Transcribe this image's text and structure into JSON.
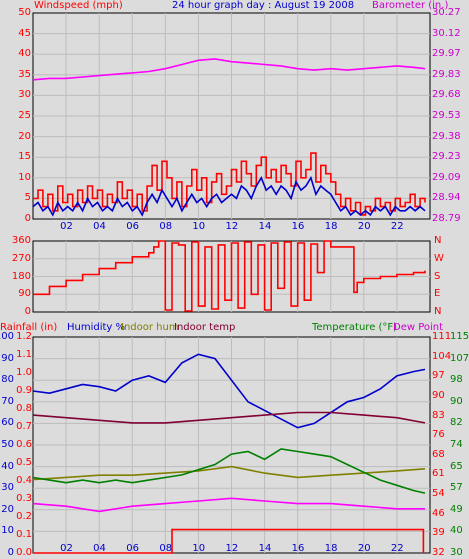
{
  "header": {
    "title": "24 hour graph day : August 19 2008",
    "windspeed_label": "Windspeed (mph)",
    "barometer_label": "Barometer (in.)"
  },
  "bottom_legend": {
    "rainfall": "Rainfall (in)",
    "humidity": "Humidity %",
    "indoor_hum": "Indoor hum",
    "indoor_temp": "Indoor temp",
    "temperature": "Temperature (°F)",
    "dew_point": "Dew Point"
  },
  "colors": {
    "background": "#dcdcdc",
    "wind_gust": "#ff0000",
    "wind_avg": "#0000cc",
    "barometer": "#ff00ff",
    "wind_dir": "#ff0000",
    "humidity": "#0000cc",
    "indoor_hum": "#808000",
    "indoor_temp": "#800033",
    "temperature": "#008000",
    "dew_point": "#ff00ff",
    "rainfall": "#ff0000",
    "left_axis_text": "#ff0000",
    "right_axis_text": "#cc00cc",
    "hum_axis_text": "#0000cc"
  },
  "chart_data": [
    {
      "id": "wind_baro",
      "type": "line",
      "title": "24 hour graph day : August 19 2008",
      "x_ticks": [
        "02",
        "04",
        "06",
        "08",
        "10",
        "12",
        "14",
        "16",
        "18",
        "20",
        "22"
      ],
      "xlim": [
        0,
        24
      ],
      "ylabel": "Windspeed (mph)",
      "ylim": [
        0,
        50
      ],
      "y_ticks": [
        "0",
        "5",
        "10",
        "15",
        "20",
        "25",
        "30",
        "35",
        "40",
        "45",
        "50"
      ],
      "y2label": "Barometer (in.)",
      "y2lim": [
        28.79,
        30.27
      ],
      "y2_ticks": [
        "28.79",
        "28.94",
        "29.09",
        "29.23",
        "29.38",
        "29.53",
        "29.68",
        "29.83",
        "29.97",
        "30.12",
        "30.27"
      ],
      "series": [
        {
          "name": "",
          "axis": "left",
          "x": [
            0,
            0.3,
            0.6,
            0.9,
            1.2,
            1.5,
            1.8,
            2.1,
            2.4,
            2.7,
            3.0,
            3.3,
            3.6,
            3.9,
            4.2,
            4.5,
            4.8,
            5.1,
            5.4,
            5.7,
            6.0,
            6.3,
            6.6,
            6.9,
            7.2,
            7.5,
            7.8,
            8.1,
            8.4,
            8.7,
            9.0,
            9.3,
            9.6,
            9.9,
            10.2,
            10.5,
            10.8,
            11.1,
            11.4,
            11.7,
            12.0,
            12.3,
            12.6,
            12.9,
            13.2,
            13.5,
            13.8,
            14.1,
            14.4,
            14.7,
            15.0,
            15.3,
            15.6,
            15.9,
            16.2,
            16.5,
            16.8,
            17.1,
            17.4,
            17.7,
            18.0,
            18.3,
            18.6,
            18.9,
            19.2,
            19.5,
            19.8,
            20.1,
            20.4,
            20.7,
            21.0,
            21.3,
            21.6,
            21.9,
            22.2,
            22.5,
            22.8,
            23.1,
            23.4,
            23.7
          ],
          "values": [
            5,
            7,
            3,
            6,
            2,
            8,
            4,
            6,
            3,
            7,
            4,
            8,
            5,
            7,
            3,
            6,
            4,
            9,
            5,
            7,
            3,
            6,
            2,
            8,
            13,
            7,
            14,
            10,
            5,
            9,
            3,
            8,
            12,
            7,
            10,
            4,
            9,
            11,
            6,
            8,
            12,
            9,
            14,
            11,
            8,
            13,
            15,
            10,
            12,
            9,
            13,
            11,
            8,
            14,
            10,
            12,
            16,
            9,
            13,
            11,
            9,
            6,
            3,
            5,
            2,
            4,
            1,
            3,
            2,
            5,
            3,
            4,
            2,
            5,
            3,
            4,
            6,
            3,
            5,
            4
          ]
        },
        {
          "name": "",
          "axis": "left",
          "x": [
            0,
            0.3,
            0.6,
            0.9,
            1.2,
            1.5,
            1.8,
            2.1,
            2.4,
            2.7,
            3.0,
            3.3,
            3.6,
            3.9,
            4.2,
            4.5,
            4.8,
            5.1,
            5.4,
            5.7,
            6.0,
            6.3,
            6.6,
            6.9,
            7.2,
            7.5,
            7.8,
            8.1,
            8.4,
            8.7,
            9.0,
            9.3,
            9.6,
            9.9,
            10.2,
            10.5,
            10.8,
            11.1,
            11.4,
            11.7,
            12.0,
            12.3,
            12.6,
            12.9,
            13.2,
            13.5,
            13.8,
            14.1,
            14.4,
            14.7,
            15.0,
            15.3,
            15.6,
            15.9,
            16.2,
            16.5,
            16.8,
            17.1,
            17.4,
            17.7,
            18.0,
            18.3,
            18.6,
            18.9,
            19.2,
            19.5,
            19.8,
            20.1,
            20.4,
            20.7,
            21.0,
            21.3,
            21.6,
            21.9,
            22.2,
            22.5,
            22.8,
            23.1,
            23.4,
            23.7
          ],
          "values": [
            3,
            4,
            2,
            3,
            1,
            4,
            2,
            3,
            2,
            4,
            2,
            5,
            3,
            4,
            2,
            3,
            2,
            5,
            3,
            4,
            2,
            3,
            1,
            4,
            6,
            4,
            7,
            5,
            3,
            5,
            2,
            4,
            6,
            4,
            5,
            3,
            5,
            6,
            4,
            5,
            6,
            5,
            8,
            7,
            5,
            8,
            10,
            7,
            8,
            6,
            8,
            7,
            5,
            9,
            7,
            8,
            10,
            6,
            8,
            7,
            6,
            4,
            2,
            3,
            1,
            2,
            1,
            2,
            1,
            3,
            2,
            3,
            1,
            3,
            2,
            2,
            3,
            2,
            3,
            2
          ]
        },
        {
          "name": "",
          "axis": "right",
          "x": [
            0,
            1,
            2,
            3,
            4,
            5,
            6,
            7,
            8,
            9,
            10,
            11,
            12,
            13,
            14,
            15,
            16,
            17,
            18,
            19,
            20,
            21,
            22,
            23,
            23.7
          ],
          "values": [
            29.79,
            29.8,
            29.8,
            29.81,
            29.82,
            29.83,
            29.84,
            29.85,
            29.87,
            29.9,
            29.93,
            29.94,
            29.92,
            29.91,
            29.9,
            29.89,
            29.87,
            29.86,
            29.87,
            29.86,
            29.87,
            29.88,
            29.89,
            29.88,
            29.87
          ]
        }
      ]
    },
    {
      "id": "wind_dir",
      "type": "line",
      "xlim": [
        0,
        24
      ],
      "ylim": [
        0,
        360
      ],
      "y_ticks": [
        "0",
        "90",
        "180",
        "270",
        "360"
      ],
      "y2_ticks": [
        "N",
        "E",
        "S",
        "W",
        "N"
      ],
      "series": [
        {
          "name": "",
          "x": [
            0,
            1,
            2,
            3,
            4,
            5,
            6,
            7,
            7.3,
            7.6,
            8.0,
            8.4,
            8.8,
            9.2,
            9.6,
            10.0,
            10.4,
            10.8,
            11.2,
            11.6,
            12.0,
            12.4,
            12.8,
            13.2,
            13.6,
            14.0,
            14.4,
            14.8,
            15.2,
            15.6,
            16.0,
            16.4,
            16.8,
            17.2,
            17.6,
            18.0,
            19.0,
            19.4,
            19.6,
            20.0,
            21.0,
            22.0,
            23.0,
            23.7
          ],
          "values": [
            90,
            130,
            160,
            190,
            220,
            250,
            280,
            300,
            330,
            360,
            10,
            350,
            340,
            5,
            355,
            30,
            330,
            15,
            340,
            60,
            350,
            20,
            355,
            90,
            340,
            10,
            350,
            120,
            355,
            30,
            350,
            60,
            345,
            200,
            360,
            330,
            330,
            100,
            150,
            170,
            180,
            190,
            200,
            210
          ]
        }
      ]
    },
    {
      "id": "hum_temp",
      "type": "line",
      "xlim": [
        0,
        24
      ],
      "ylabel": "Rainfall (in)",
      "ylim": [
        0,
        1.2
      ],
      "y_ticks": [
        "0.0",
        "0.1",
        "0.2",
        "0.3",
        "0.4",
        "0.5",
        "0.6",
        "0.7",
        "0.8",
        "0.9",
        "1.0",
        "1.1",
        "1.2"
      ],
      "hum_ylim": [
        0,
        100
      ],
      "hum_ticks": [
        "0",
        "10",
        "20",
        "30",
        "40",
        "50",
        "60",
        "70",
        "80",
        "90",
        "100"
      ],
      "y2label": "Temperature (°F)",
      "y2lim": [
        32,
        115
      ],
      "y2_ticks": [
        "32",
        "39",
        "46",
        "54",
        "61",
        "68",
        "76",
        "83",
        "90",
        "97",
        "104",
        "111"
      ],
      "y3_ticks": [
        "30",
        "40",
        "49",
        "57",
        "65",
        "74",
        "82",
        "90",
        "98",
        "107",
        "115"
      ],
      "series": [
        {
          "name": "Humidity %",
          "axis": "humidity",
          "x": [
            0,
            1,
            2,
            3,
            4,
            5,
            6,
            7,
            8,
            9,
            10,
            11,
            12,
            13,
            14,
            15,
            16,
            17,
            18,
            19,
            20,
            21,
            22,
            23,
            23.7
          ],
          "values": [
            75,
            74,
            76,
            78,
            77,
            75,
            80,
            82,
            79,
            88,
            92,
            90,
            80,
            70,
            66,
            62,
            58,
            60,
            65,
            70,
            72,
            76,
            82,
            84,
            85
          ]
        },
        {
          "name": "Indoor hum",
          "axis": "humidity",
          "x": [
            0,
            2,
            4,
            6,
            8,
            10,
            12,
            14,
            16,
            18,
            20,
            22,
            23.7
          ],
          "values": [
            34,
            35,
            36,
            36,
            37,
            38,
            40,
            37,
            35,
            36,
            37,
            38,
            39
          ]
        },
        {
          "name": "Indoor temp",
          "axis": "right",
          "x": [
            0,
            2,
            4,
            6,
            8,
            10,
            12,
            14,
            16,
            18,
            20,
            22,
            23.7
          ],
          "values": [
            85,
            84,
            83,
            82,
            82,
            83,
            84,
            85,
            86,
            86,
            85,
            84,
            82
          ]
        },
        {
          "name": "Temperature (°F)",
          "axis": "right",
          "x": [
            0,
            1,
            2,
            3,
            4,
            5,
            6,
            7,
            8,
            9,
            10,
            11,
            12,
            13,
            14,
            15,
            16,
            17,
            18,
            19,
            20,
            21,
            22,
            23,
            23.7
          ],
          "values": [
            61,
            60,
            59,
            60,
            59,
            60,
            59,
            60,
            61,
            62,
            64,
            66,
            70,
            71,
            68,
            72,
            71,
            70,
            69,
            66,
            63,
            60,
            58,
            56,
            55
          ]
        },
        {
          "name": "Dew Point",
          "axis": "right",
          "x": [
            0,
            2,
            4,
            6,
            8,
            10,
            12,
            14,
            16,
            18,
            20,
            22,
            23.7
          ],
          "values": [
            51,
            50,
            48,
            50,
            51,
            52,
            53,
            52,
            51,
            51,
            50,
            49,
            49
          ]
        },
        {
          "name": "Rainfall (in)",
          "axis": "left",
          "x": [
            0,
            8.2,
            8.4,
            23.5,
            23.6
          ],
          "values": [
            0.0,
            0.0,
            0.13,
            0.13,
            0.0
          ]
        }
      ]
    }
  ]
}
